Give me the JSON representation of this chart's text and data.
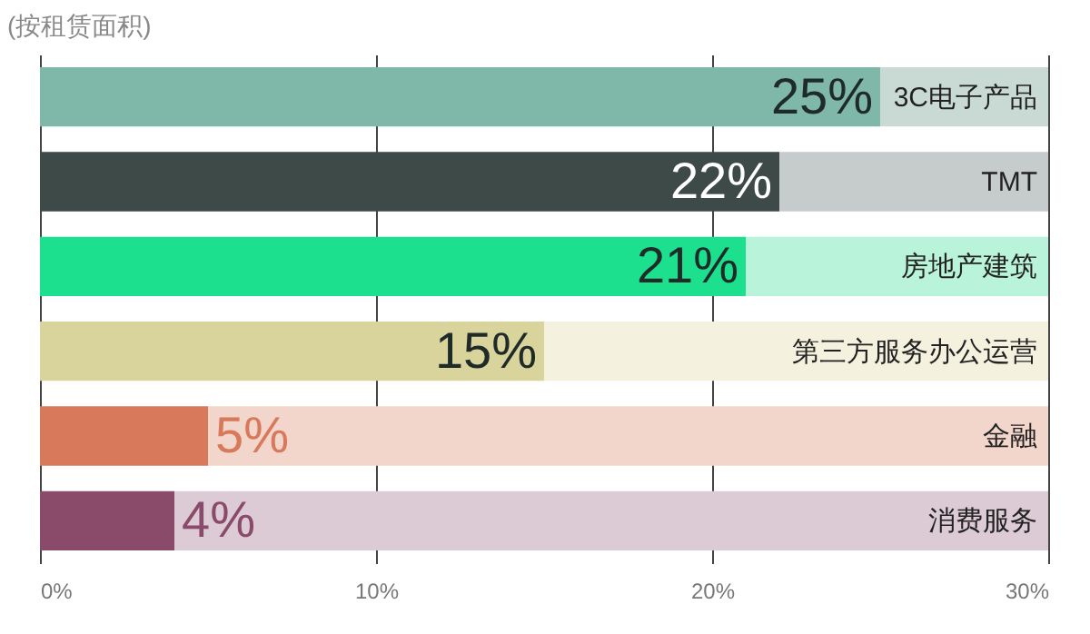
{
  "chart_data": {
    "type": "bar",
    "orientation": "horizontal",
    "stacked": true,
    "title": "(按租赁面积)",
    "categories": [
      "3C电子产品",
      "TMT",
      "房地产建筑",
      "第三方服务办公运营",
      "金融",
      "消费服务"
    ],
    "series": [
      {
        "values": [
          25,
          22,
          21,
          15,
          5,
          4
        ],
        "colors": [
          "#7fb8a8",
          "#3d4a47",
          "#1de08e",
          "#d9d39c",
          "#d8795c",
          "#8a4a6a"
        ],
        "value_labels": [
          "25%",
          "22%",
          "21%",
          "15%",
          "5%",
          "4%"
        ]
      },
      {
        "values": [
          5,
          8,
          9,
          15,
          25,
          26
        ],
        "colors": [
          "#c9dad4",
          "#c5cccb",
          "#b9f3d9",
          "#f4f1de",
          "#f3d6cb",
          "#dccad5"
        ]
      }
    ],
    "xlim": [
      0,
      30
    ],
    "xticks": [
      {
        "value": 0,
        "label": "0%"
      },
      {
        "value": 10,
        "label": "10%"
      },
      {
        "value": 20,
        "label": "20%"
      },
      {
        "value": 30,
        "label": "30%"
      }
    ],
    "grid": "x",
    "tick_labels": "x"
  }
}
